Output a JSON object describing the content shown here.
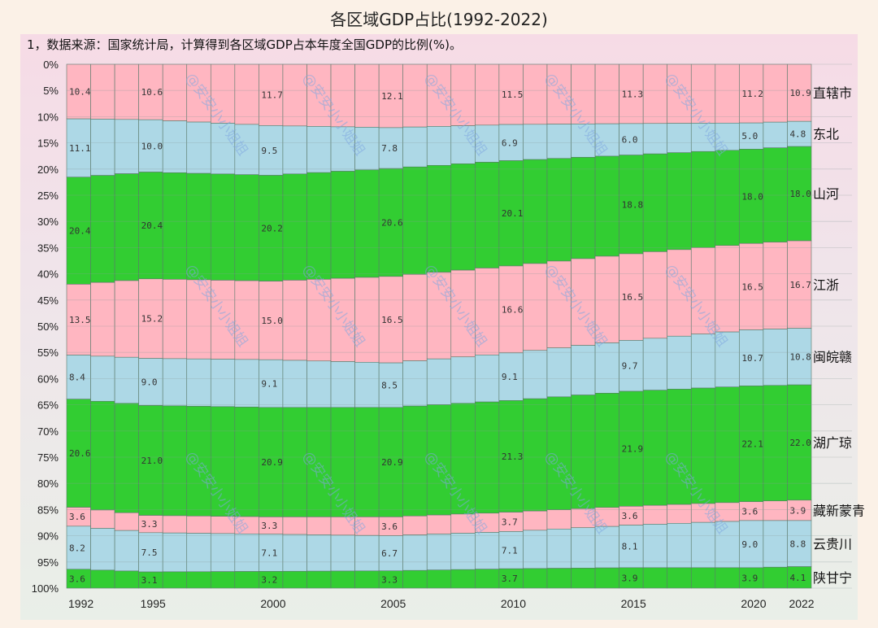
{
  "chart_data": {
    "type": "bar",
    "stacked": true,
    "normalized": true,
    "title": "各区域GDP占比(1992-2022)",
    "subtitle": "1，数据来源：国家统计局，计算得到各区域GDP占本年度全国GDP的比例(%)。",
    "xlabel": "",
    "ylabel": "",
    "x_range": [
      1992,
      2022
    ],
    "ylim": [
      0,
      100
    ],
    "y_inverted": true,
    "y_ticks": [
      "0%",
      "5%",
      "10%",
      "15%",
      "20%",
      "25%",
      "30%",
      "35%",
      "40%",
      "45%",
      "50%",
      "55%",
      "60%",
      "65%",
      "70%",
      "75%",
      "80%",
      "85%",
      "90%",
      "95%",
      "100%"
    ],
    "x_ticks": [
      "1992",
      "1995",
      "2000",
      "2005",
      "2010",
      "2015",
      "2020",
      "2022"
    ],
    "labeled_years": [
      1992,
      1995,
      2000,
      2005,
      2010,
      2015,
      2020,
      2022
    ],
    "grid": true,
    "legend": "right (labels beside last bar)",
    "series": [
      {
        "name": "直辖市",
        "color": "#ffb6c1",
        "values": [
          10.4,
          10.6,
          11.7,
          12.1,
          11.5,
          11.3,
          11.2,
          10.9
        ]
      },
      {
        "name": "东北",
        "color": "#add8e6",
        "values": [
          11.1,
          10.0,
          9.5,
          7.8,
          6.9,
          6.0,
          5.0,
          4.8
        ]
      },
      {
        "name": "山河",
        "color": "#32cd32",
        "values": [
          20.4,
          20.4,
          20.2,
          20.6,
          20.1,
          18.8,
          18.0,
          18.0
        ]
      },
      {
        "name": "江浙",
        "color": "#ffb6c1",
        "values": [
          13.5,
          15.2,
          15.0,
          16.5,
          16.6,
          16.5,
          16.5,
          16.7
        ]
      },
      {
        "name": "闽皖赣",
        "color": "#add8e6",
        "values": [
          8.4,
          9.0,
          9.1,
          8.5,
          9.1,
          9.7,
          10.7,
          10.8
        ]
      },
      {
        "name": "湖广琼",
        "color": "#32cd32",
        "values": [
          20.6,
          21.0,
          20.9,
          20.9,
          21.3,
          21.9,
          22.1,
          22.0
        ]
      },
      {
        "name": "藏新蒙青",
        "color": "#ffb6c1",
        "values": [
          3.6,
          3.3,
          3.3,
          3.6,
          3.7,
          3.6,
          3.6,
          3.9
        ]
      },
      {
        "name": "云贵川",
        "color": "#add8e6",
        "values": [
          8.2,
          7.5,
          7.1,
          6.7,
          7.1,
          8.1,
          9.0,
          8.8
        ]
      },
      {
        "name": "陕甘宁",
        "color": "#32cd32",
        "values": [
          3.6,
          3.1,
          3.2,
          3.3,
          3.7,
          3.9,
          3.9,
          4.1
        ]
      }
    ],
    "watermark": "@安安小小姐姐"
  }
}
